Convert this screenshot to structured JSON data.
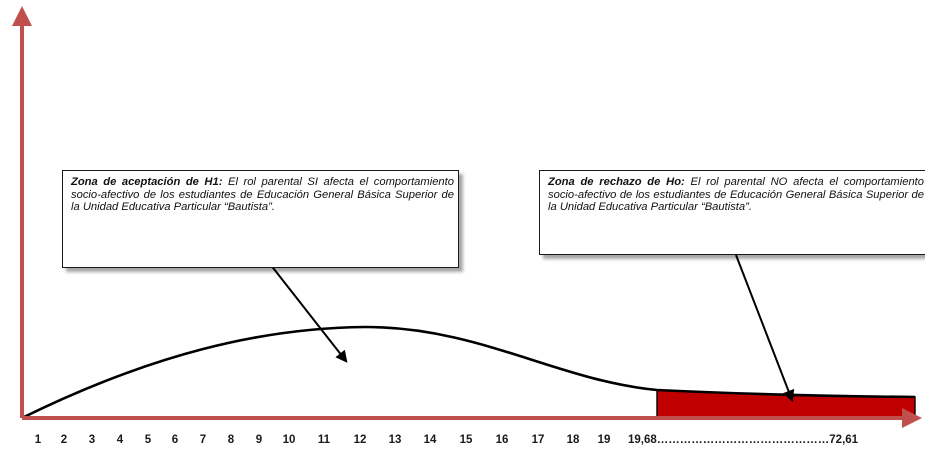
{
  "acceptance_box": {
    "heading": "Zona de aceptación de H1:",
    "text": " El rol parental SI afecta el comportamiento socio-afectivo de los estudiantes de Educación General Básica Superior de la Unidad Educativa Particular “Bautista”."
  },
  "rejection_box": {
    "heading": "Zona de rechazo de Ho:",
    "text": " El rol parental NO afecta el comportamiento socio-afectivo de los estudiantes de Educación General Básica Superior de la Unidad Educativa Particular “Bautista”."
  },
  "x_axis_labels": [
    "1",
    "2",
    "3",
    "4",
    "5",
    "6",
    "7",
    "8",
    "9",
    "10",
    "11",
    "12",
    "13",
    "14",
    "15",
    "16",
    "17",
    "18",
    "19"
  ],
  "critical_label": "19,68………………………………………72,61",
  "colors": {
    "axis": "#c0504d",
    "curve": "#000000",
    "rejection_fill": "#c00000"
  }
}
